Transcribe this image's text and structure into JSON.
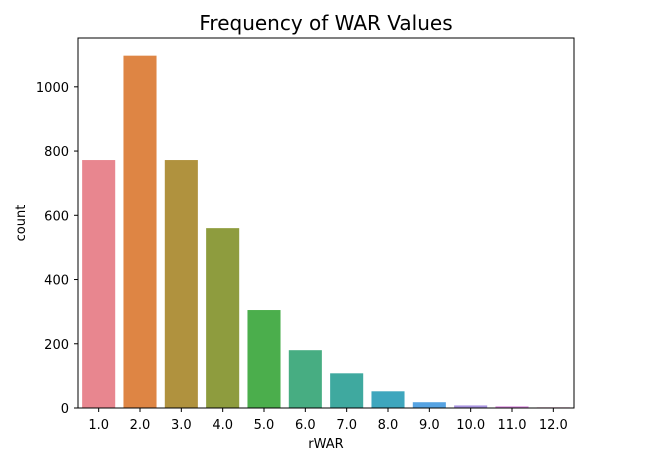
{
  "chart_data": {
    "type": "bar",
    "title": "Frequency of WAR Values",
    "xlabel": "rWAR",
    "ylabel": "count",
    "categories": [
      "1.0",
      "2.0",
      "3.0",
      "4.0",
      "5.0",
      "6.0",
      "7.0",
      "8.0",
      "9.0",
      "10.0",
      "11.0",
      "12.0"
    ],
    "values": [
      772,
      1097,
      772,
      560,
      305,
      180,
      108,
      52,
      18,
      8,
      5,
      2
    ],
    "ylim": [
      0,
      1152
    ],
    "yticks": [
      0,
      200,
      400,
      600,
      800,
      1000
    ],
    "grid": false,
    "colors": [
      "#e8868f",
      "#de8544",
      "#b0923e",
      "#8e9c3e",
      "#4bae4c",
      "#47ad82",
      "#3fa99f",
      "#3ea6bd",
      "#56a3e2",
      "#a994e1",
      "#d783dd",
      "#e67fb3"
    ]
  }
}
